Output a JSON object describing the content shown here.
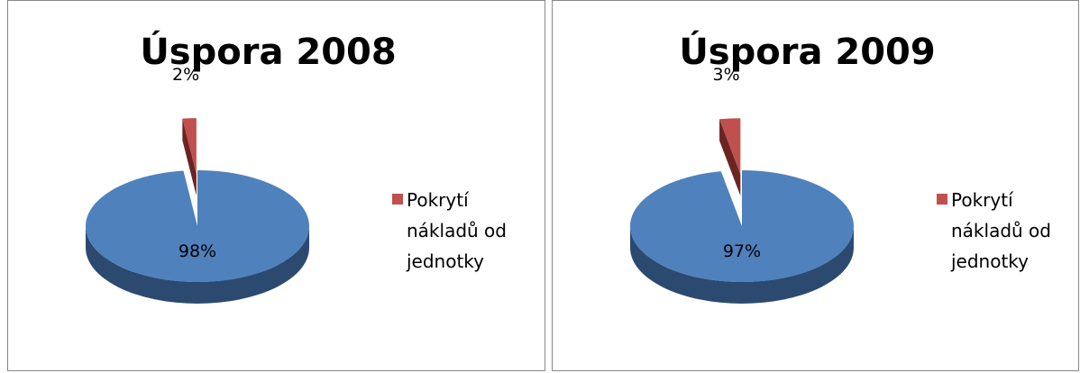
{
  "chart_data": [
    {
      "type": "pie",
      "title": "Úspora 2008",
      "categories": [
        null,
        "Pokrytí nákladů od jednotky"
      ],
      "values": [
        98,
        2
      ],
      "value_labels": [
        "98%",
        "2%"
      ],
      "colors": [
        "#4f81bd",
        "#c0504d"
      ]
    },
    {
      "type": "pie",
      "title": "Úspora 2009",
      "categories": [
        null,
        "Pokrytí nákladů od jednotky"
      ],
      "values": [
        97,
        3
      ],
      "value_labels": [
        "97%",
        "3%"
      ],
      "colors": [
        "#4f81bd",
        "#c0504d"
      ]
    }
  ]
}
